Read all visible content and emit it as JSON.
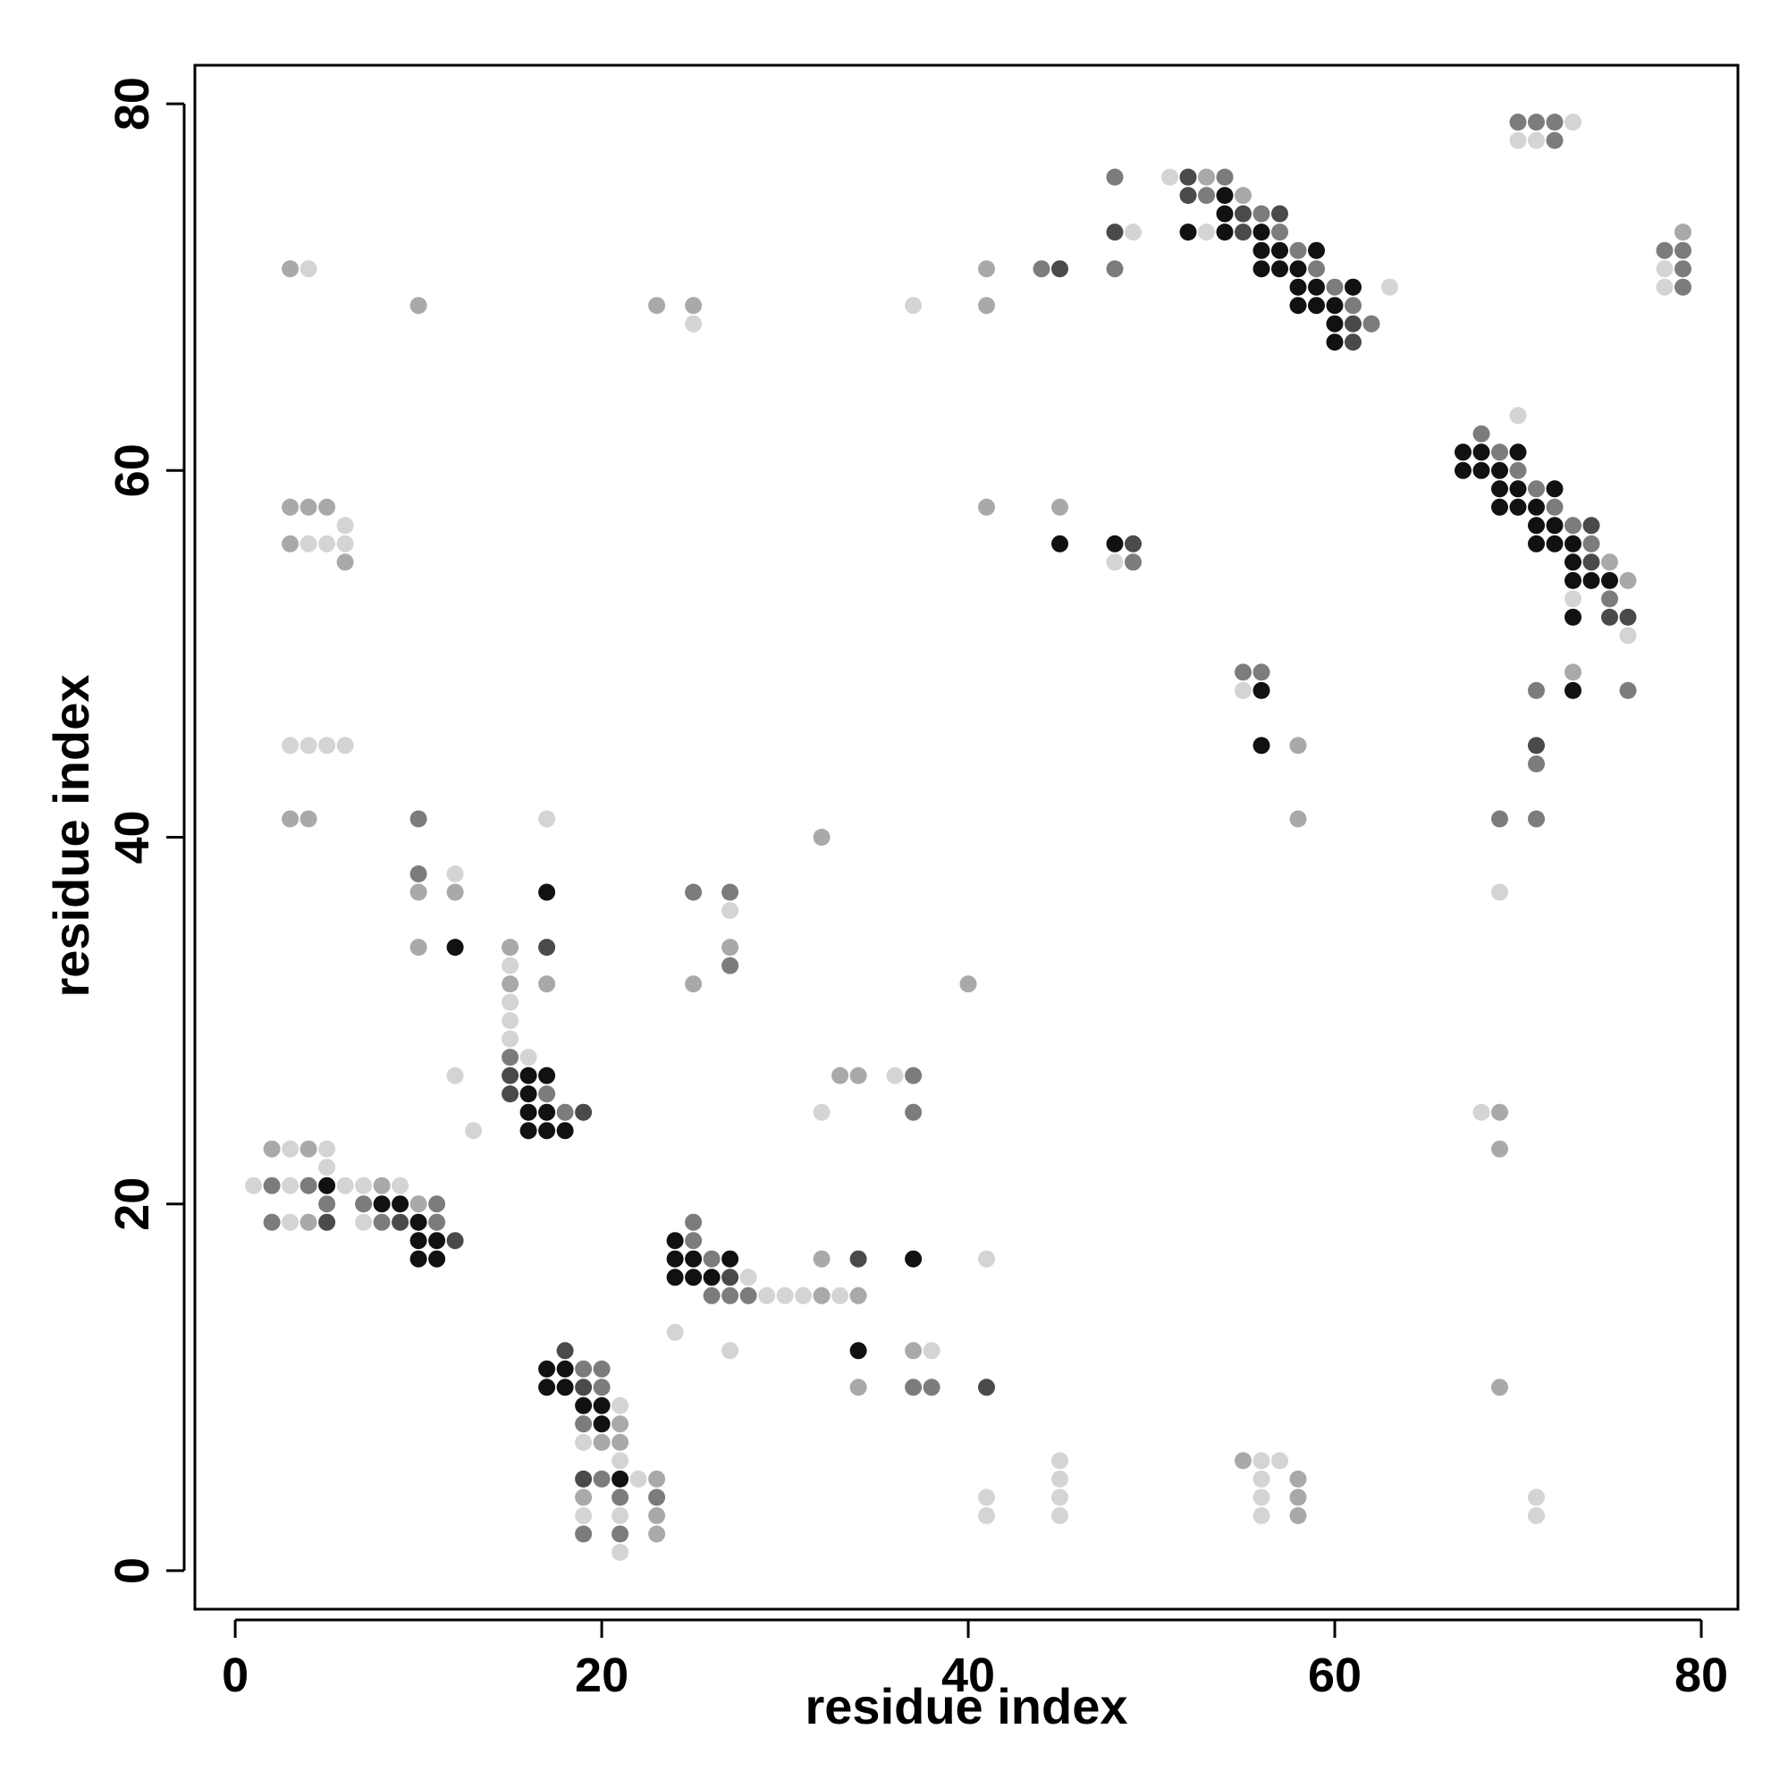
{
  "chart_data": {
    "type": "scatter",
    "title": "",
    "xlabel": "residue index",
    "ylabel": "residue index",
    "xlim": [
      -2.2,
      82
    ],
    "ylim": [
      -2.1,
      82.1
    ],
    "xticks": [
      0,
      20,
      40,
      60,
      80
    ],
    "yticks": [
      0,
      20,
      40,
      60,
      80
    ],
    "grid": false,
    "point_color_scale": "grayscale: lighter = weaker contact, black = strongest",
    "levels": {
      "1": "#d4d4d4",
      "2": "#a9a9a9",
      "3": "#7c7c7c",
      "4": "#4a4a4a",
      "5": "#111111"
    },
    "points": [
      [
        3,
        71,
        2
      ],
      [
        4,
        71,
        1
      ],
      [
        10,
        69,
        2
      ],
      [
        23,
        69,
        2
      ],
      [
        25,
        69,
        2
      ],
      [
        25,
        68,
        1
      ],
      [
        37,
        69,
        1
      ],
      [
        41,
        71,
        2
      ],
      [
        41,
        69,
        2
      ],
      [
        44,
        71,
        3
      ],
      [
        45,
        71,
        4
      ],
      [
        48,
        76,
        3
      ],
      [
        48,
        73,
        4
      ],
      [
        49,
        73,
        1
      ],
      [
        48,
        71,
        3
      ],
      [
        51,
        76,
        1
      ],
      [
        52,
        76,
        4
      ],
      [
        53,
        76,
        2
      ],
      [
        54,
        76,
        3
      ],
      [
        52,
        75,
        4
      ],
      [
        53,
        75,
        3
      ],
      [
        54,
        75,
        5
      ],
      [
        55,
        75,
        2
      ],
      [
        52,
        73,
        5
      ],
      [
        53,
        73,
        1
      ],
      [
        54,
        74,
        5
      ],
      [
        55,
        74,
        4
      ],
      [
        56,
        74,
        3
      ],
      [
        57,
        74,
        4
      ],
      [
        54,
        73,
        5
      ],
      [
        55,
        73,
        4
      ],
      [
        56,
        73,
        5
      ],
      [
        57,
        73,
        3
      ],
      [
        56,
        72,
        5
      ],
      [
        57,
        72,
        5
      ],
      [
        58,
        72,
        3
      ],
      [
        59,
        72,
        5
      ],
      [
        56,
        71,
        5
      ],
      [
        57,
        71,
        5
      ],
      [
        58,
        71,
        5
      ],
      [
        59,
        71,
        3
      ],
      [
        58,
        70,
        5
      ],
      [
        59,
        70,
        5
      ],
      [
        60,
        70,
        3
      ],
      [
        61,
        70,
        5
      ],
      [
        58,
        69,
        5
      ],
      [
        59,
        69,
        5
      ],
      [
        60,
        69,
        5
      ],
      [
        61,
        69,
        3
      ],
      [
        60,
        68,
        5
      ],
      [
        61,
        68,
        4
      ],
      [
        62,
        68,
        3
      ],
      [
        60,
        67,
        5
      ],
      [
        61,
        67,
        4
      ],
      [
        63,
        70,
        1
      ],
      [
        70,
        79,
        3
      ],
      [
        71,
        79,
        3
      ],
      [
        72,
        79,
        3
      ],
      [
        73,
        79,
        1
      ],
      [
        70,
        78,
        1
      ],
      [
        71,
        78,
        1
      ],
      [
        72,
        78,
        3
      ],
      [
        78,
        72,
        3
      ],
      [
        79,
        72,
        3
      ],
      [
        79,
        73,
        2
      ],
      [
        78,
        71,
        1
      ],
      [
        79,
        71,
        3
      ],
      [
        78,
        70,
        1
      ],
      [
        79,
        70,
        3
      ],
      [
        67,
        61,
        5
      ],
      [
        68,
        61,
        5
      ],
      [
        69,
        61,
        3
      ],
      [
        70,
        61,
        5
      ],
      [
        68,
        62,
        3
      ],
      [
        67,
        60,
        5
      ],
      [
        68,
        60,
        5
      ],
      [
        69,
        60,
        5
      ],
      [
        70,
        60,
        3
      ],
      [
        70,
        63,
        1
      ],
      [
        69,
        59,
        5
      ],
      [
        70,
        59,
        5
      ],
      [
        71,
        59,
        3
      ],
      [
        72,
        59,
        5
      ],
      [
        69,
        58,
        5
      ],
      [
        70,
        58,
        5
      ],
      [
        71,
        58,
        5
      ],
      [
        72,
        58,
        3
      ],
      [
        71,
        57,
        5
      ],
      [
        72,
        57,
        5
      ],
      [
        73,
        57,
        3
      ],
      [
        74,
        57,
        4
      ],
      [
        71,
        56,
        5
      ],
      [
        72,
        56,
        5
      ],
      [
        73,
        56,
        5
      ],
      [
        74,
        56,
        3
      ],
      [
        73,
        55,
        5
      ],
      [
        74,
        55,
        4
      ],
      [
        75,
        55,
        2
      ],
      [
        73,
        54,
        5
      ],
      [
        74,
        54,
        5
      ],
      [
        75,
        54,
        5
      ],
      [
        76,
        54,
        2
      ],
      [
        73,
        53,
        1
      ],
      [
        75,
        53,
        3
      ],
      [
        73,
        52,
        5
      ],
      [
        75,
        52,
        4
      ],
      [
        76,
        52,
        4
      ],
      [
        76,
        51,
        1
      ],
      [
        73,
        49,
        2
      ],
      [
        73,
        48,
        5
      ],
      [
        71,
        48,
        3
      ],
      [
        76,
        48,
        3
      ],
      [
        71,
        45,
        4
      ],
      [
        71,
        44,
        3
      ],
      [
        69,
        41,
        3
      ],
      [
        71,
        41,
        3
      ],
      [
        69,
        37,
        1
      ],
      [
        68,
        25,
        1
      ],
      [
        69,
        25,
        2
      ],
      [
        69,
        23,
        2
      ],
      [
        69,
        10,
        2
      ],
      [
        71,
        4,
        1
      ],
      [
        71,
        3,
        1
      ],
      [
        41,
        58,
        2
      ],
      [
        45,
        58,
        2
      ],
      [
        45,
        56,
        5
      ],
      [
        48,
        56,
        5
      ],
      [
        49,
        56,
        4
      ],
      [
        48,
        55,
        1
      ],
      [
        49,
        55,
        3
      ],
      [
        55,
        49,
        3
      ],
      [
        56,
        49,
        3
      ],
      [
        55,
        48,
        1
      ],
      [
        56,
        48,
        5
      ],
      [
        56,
        45,
        5
      ],
      [
        58,
        45,
        2
      ],
      [
        58,
        41,
        2
      ],
      [
        3,
        58,
        2
      ],
      [
        4,
        58,
        2
      ],
      [
        5,
        58,
        2
      ],
      [
        6,
        57,
        1
      ],
      [
        3,
        56,
        2
      ],
      [
        4,
        56,
        1
      ],
      [
        5,
        56,
        1
      ],
      [
        6,
        56,
        1
      ],
      [
        6,
        55,
        2
      ],
      [
        3,
        45,
        1
      ],
      [
        4,
        45,
        1
      ],
      [
        5,
        45,
        1
      ],
      [
        6,
        45,
        1
      ],
      [
        3,
        41,
        2
      ],
      [
        4,
        41,
        2
      ],
      [
        10,
        41,
        3
      ],
      [
        10,
        38,
        3
      ],
      [
        12,
        38,
        1
      ],
      [
        10,
        37,
        2
      ],
      [
        12,
        37,
        2
      ],
      [
        10,
        34,
        2
      ],
      [
        12,
        34,
        5
      ],
      [
        17,
        41,
        1
      ],
      [
        17,
        37,
        5
      ],
      [
        17,
        34,
        4
      ],
      [
        17,
        32,
        2
      ],
      [
        15,
        34,
        2
      ],
      [
        15,
        33,
        1
      ],
      [
        15,
        32,
        2
      ],
      [
        15,
        31,
        1
      ],
      [
        15,
        30,
        1
      ],
      [
        15,
        29,
        1
      ],
      [
        15,
        28,
        3
      ],
      [
        16,
        28,
        1
      ],
      [
        15,
        27,
        4
      ],
      [
        16,
        27,
        5
      ],
      [
        17,
        27,
        5
      ],
      [
        15,
        26,
        4
      ],
      [
        16,
        26,
        5
      ],
      [
        17,
        26,
        3
      ],
      [
        16,
        25,
        5
      ],
      [
        17,
        25,
        5
      ],
      [
        18,
        25,
        3
      ],
      [
        19,
        25,
        4
      ],
      [
        16,
        24,
        5
      ],
      [
        17,
        24,
        5
      ],
      [
        18,
        24,
        5
      ],
      [
        12,
        27,
        1
      ],
      [
        13,
        24,
        1
      ],
      [
        25,
        37,
        3
      ],
      [
        27,
        37,
        3
      ],
      [
        27,
        36,
        1
      ],
      [
        27,
        34,
        2
      ],
      [
        27,
        33,
        3
      ],
      [
        25,
        32,
        2
      ],
      [
        32,
        40,
        2
      ],
      [
        40,
        32,
        2
      ],
      [
        33,
        27,
        2
      ],
      [
        34,
        27,
        2
      ],
      [
        36,
        27,
        1
      ],
      [
        37,
        27,
        3
      ],
      [
        32,
        25,
        1
      ],
      [
        37,
        25,
        3
      ],
      [
        2,
        23,
        2
      ],
      [
        3,
        23,
        1
      ],
      [
        4,
        23,
        2
      ],
      [
        5,
        23,
        1
      ],
      [
        5,
        22,
        1
      ],
      [
        1,
        21,
        1
      ],
      [
        2,
        21,
        3
      ],
      [
        3,
        21,
        1
      ],
      [
        4,
        21,
        3
      ],
      [
        5,
        21,
        5
      ],
      [
        6,
        21,
        1
      ],
      [
        7,
        21,
        1
      ],
      [
        8,
        21,
        2
      ],
      [
        9,
        21,
        1
      ],
      [
        5,
        20,
        3
      ],
      [
        7,
        20,
        3
      ],
      [
        8,
        20,
        5
      ],
      [
        9,
        20,
        5
      ],
      [
        10,
        20,
        2
      ],
      [
        11,
        20,
        3
      ],
      [
        2,
        19,
        3
      ],
      [
        3,
        19,
        1
      ],
      [
        4,
        19,
        2
      ],
      [
        5,
        19,
        4
      ],
      [
        7,
        19,
        1
      ],
      [
        8,
        19,
        3
      ],
      [
        9,
        19,
        4
      ],
      [
        10,
        19,
        5
      ],
      [
        11,
        19,
        3
      ],
      [
        10,
        18,
        5
      ],
      [
        11,
        18,
        5
      ],
      [
        12,
        18,
        4
      ],
      [
        10,
        17,
        5
      ],
      [
        11,
        17,
        5
      ],
      [
        24,
        18,
        5
      ],
      [
        25,
        18,
        3
      ],
      [
        25,
        19,
        3
      ],
      [
        24,
        17,
        5
      ],
      [
        25,
        17,
        5
      ],
      [
        26,
        17,
        3
      ],
      [
        27,
        17,
        5
      ],
      [
        24,
        16,
        5
      ],
      [
        25,
        16,
        5
      ],
      [
        26,
        16,
        5
      ],
      [
        27,
        16,
        4
      ],
      [
        28,
        16,
        1
      ],
      [
        26,
        15,
        3
      ],
      [
        27,
        15,
        3
      ],
      [
        28,
        15,
        3
      ],
      [
        29,
        15,
        1
      ],
      [
        30,
        15,
        1
      ],
      [
        31,
        15,
        1
      ],
      [
        32,
        15,
        2
      ],
      [
        33,
        15,
        1
      ],
      [
        34,
        15,
        2
      ],
      [
        32,
        17,
        2
      ],
      [
        34,
        17,
        4
      ],
      [
        37,
        17,
        5
      ],
      [
        41,
        17,
        1
      ],
      [
        24,
        13,
        1
      ],
      [
        27,
        12,
        1
      ],
      [
        34,
        12,
        5
      ],
      [
        37,
        12,
        2
      ],
      [
        38,
        12,
        1
      ],
      [
        34,
        10,
        2
      ],
      [
        37,
        10,
        3
      ],
      [
        38,
        10,
        3
      ],
      [
        41,
        10,
        4
      ],
      [
        18,
        12,
        4
      ],
      [
        17,
        11,
        5
      ],
      [
        18,
        11,
        5
      ],
      [
        19,
        11,
        3
      ],
      [
        20,
        11,
        3
      ],
      [
        17,
        10,
        5
      ],
      [
        18,
        10,
        5
      ],
      [
        19,
        10,
        4
      ],
      [
        20,
        10,
        3
      ],
      [
        19,
        9,
        5
      ],
      [
        20,
        9,
        5
      ],
      [
        21,
        9,
        1
      ],
      [
        19,
        8,
        3
      ],
      [
        20,
        8,
        5
      ],
      [
        21,
        8,
        2
      ],
      [
        19,
        7,
        1
      ],
      [
        20,
        7,
        2
      ],
      [
        21,
        7,
        2
      ],
      [
        21,
        6,
        1
      ],
      [
        19,
        5,
        4
      ],
      [
        20,
        5,
        3
      ],
      [
        21,
        5,
        5
      ],
      [
        22,
        5,
        1
      ],
      [
        23,
        5,
        2
      ],
      [
        19,
        4,
        2
      ],
      [
        21,
        4,
        3
      ],
      [
        23,
        4,
        3
      ],
      [
        19,
        3,
        1
      ],
      [
        21,
        3,
        1
      ],
      [
        23,
        3,
        2
      ],
      [
        19,
        2,
        3
      ],
      [
        21,
        2,
        3
      ],
      [
        23,
        2,
        2
      ],
      [
        21,
        1,
        1
      ],
      [
        45,
        6,
        1
      ],
      [
        45,
        5,
        1
      ],
      [
        41,
        4,
        1
      ],
      [
        45,
        4,
        1
      ],
      [
        41,
        3,
        1
      ],
      [
        45,
        3,
        1
      ],
      [
        55,
        6,
        2
      ],
      [
        56,
        6,
        1
      ],
      [
        57,
        6,
        1
      ],
      [
        56,
        5,
        1
      ],
      [
        58,
        5,
        2
      ],
      [
        56,
        4,
        1
      ],
      [
        58,
        4,
        2
      ],
      [
        56,
        3,
        1
      ],
      [
        58,
        3,
        2
      ]
    ]
  }
}
